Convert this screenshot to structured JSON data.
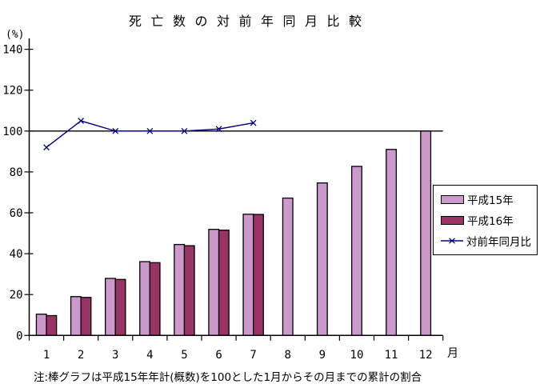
{
  "title": "死亡数の対前年同月比較",
  "y_axis_unit_label": "(%)",
  "x_axis_unit_label": "月",
  "note": "注:棒グラフは平成15年年計(概数)を100とした1月からその月までの累計の割合",
  "colors": {
    "h15_bar": "#CC99CC",
    "h16_bar": "#993366",
    "ratio_line": "#000080",
    "axis": "#000000",
    "reference_line": "#000000"
  },
  "chart_data": {
    "type": "bar",
    "subtype": "bar+line combo",
    "title": "死亡数の対前年同月比較",
    "xlabel": "月",
    "ylabel": "(%)",
    "categories": [
      1,
      2,
      3,
      4,
      5,
      6,
      7,
      8,
      9,
      10,
      11,
      12
    ],
    "yticks": [
      0,
      20,
      40,
      60,
      80,
      100,
      120,
      140
    ],
    "ylim": [
      0,
      140
    ],
    "reference_line": 100,
    "grid": "off",
    "legend_position": "right",
    "series": [
      {
        "name": "平成15年",
        "type": "bar",
        "color": "#CC99CC",
        "values": [
          10.4,
          19.0,
          27.9,
          36.1,
          44.5,
          51.9,
          59.3,
          67.2,
          74.6,
          82.7,
          91.0,
          100.0
        ]
      },
      {
        "name": "平成16年",
        "type": "bar",
        "color": "#993366",
        "values": [
          9.7,
          18.6,
          27.4,
          35.6,
          43.9,
          51.5,
          59.2
        ]
      },
      {
        "name": "対前年同月比",
        "type": "line",
        "marker": "x",
        "color": "#000080",
        "values": [
          92,
          105,
          100,
          100,
          100,
          101,
          104
        ]
      }
    ]
  }
}
